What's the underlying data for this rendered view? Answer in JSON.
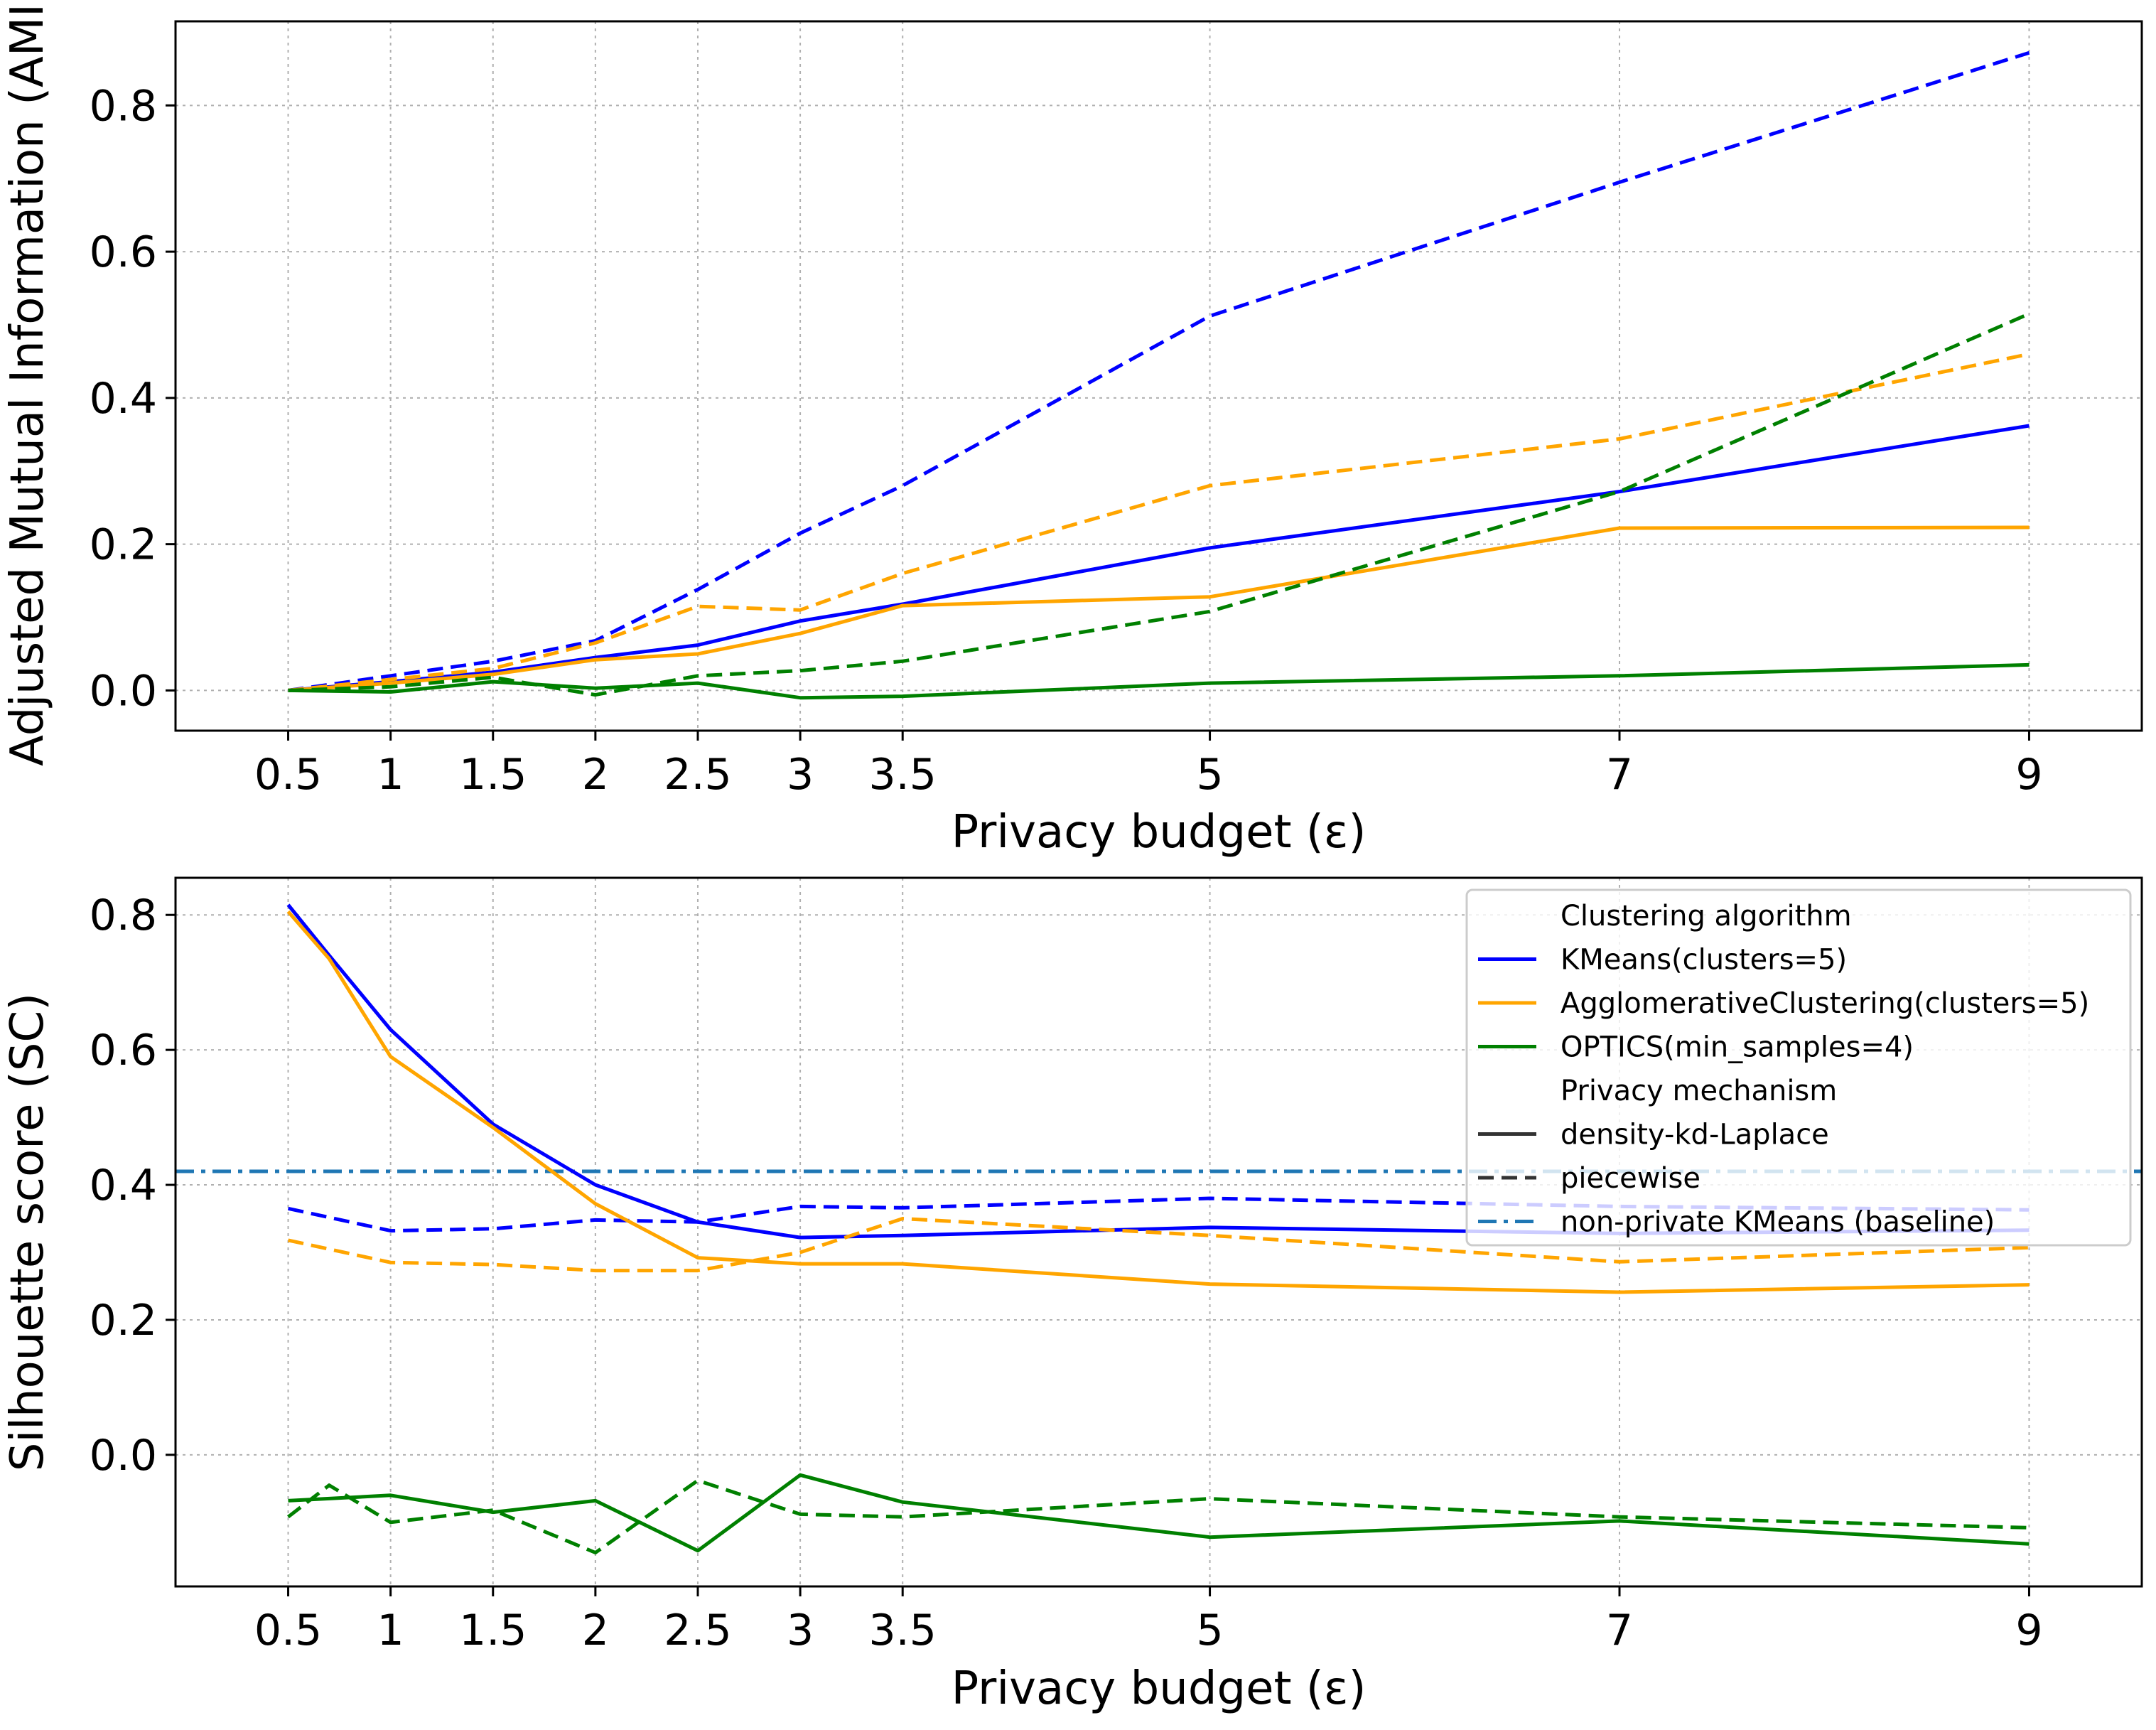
{
  "chart_data": [
    {
      "type": "line",
      "xlabel": "Privacy budget (ε)",
      "ylabel": "Adjusted Mutual Information (AMI)",
      "x": [
        0.5,
        1,
        1.5,
        2,
        2.5,
        3,
        3.5,
        5,
        7,
        9
      ],
      "xtick_labels": [
        "0.5",
        "1",
        "1.5",
        "2",
        "2.5",
        "3",
        "3.5",
        "5",
        "7",
        "9"
      ],
      "yticks": [
        0.0,
        0.2,
        0.4,
        0.6,
        0.8
      ],
      "ytick_labels": [
        "0.0",
        "0.2",
        "0.4",
        "0.6",
        "0.8"
      ],
      "ylim": [
        -0.055,
        0.915
      ],
      "xlim": [
        -0.05,
        9.55
      ],
      "grid": true,
      "series": [
        {
          "algorithm": "KMeans(clusters=5)",
          "mechanism": "density-kd-Laplace",
          "color": "#0000ff",
          "dash": "solid",
          "values": [
            0.0,
            0.012,
            0.025,
            0.045,
            0.062,
            0.095,
            0.118,
            0.195,
            0.272,
            0.362
          ]
        },
        {
          "algorithm": "KMeans(clusters=5)",
          "mechanism": "piecewise",
          "color": "#0000ff",
          "dash": "dashed",
          "values": [
            0.0,
            0.02,
            0.04,
            0.068,
            0.138,
            0.215,
            0.28,
            0.512,
            0.695,
            0.872
          ]
        },
        {
          "algorithm": "AgglomerativeClustering(clusters=5)",
          "mechanism": "density-kd-Laplace",
          "color": "#ffa500",
          "dash": "solid",
          "values": [
            0.0,
            0.01,
            0.022,
            0.042,
            0.05,
            0.078,
            0.116,
            0.128,
            0.222,
            0.223
          ]
        },
        {
          "algorithm": "AgglomerativeClustering(clusters=5)",
          "mechanism": "piecewise",
          "color": "#ffa500",
          "dash": "dashed",
          "x": [
            0.5,
            1,
            1.5,
            2,
            2.5,
            3,
            3.5,
            5,
            7,
            9
          ],
          "values": [
            0.0,
            0.015,
            0.03,
            0.065,
            0.115,
            0.11,
            0.16,
            0.28,
            0.344,
            0.46
          ]
        },
        {
          "algorithm": "OPTICS(min_samples=4)",
          "mechanism": "density-kd-Laplace",
          "color": "#008000",
          "dash": "solid",
          "values": [
            0.0,
            -0.002,
            0.012,
            0.003,
            0.01,
            -0.01,
            -0.008,
            0.01,
            0.02,
            0.035
          ]
        },
        {
          "algorithm": "OPTICS(min_samples=4)",
          "mechanism": "piecewise",
          "color": "#008000",
          "dash": "dashed",
          "values": [
            0.0,
            0.005,
            0.018,
            -0.006,
            0.02,
            0.027,
            0.04,
            0.108,
            0.272,
            0.515
          ]
        }
      ]
    },
    {
      "type": "line",
      "xlabel": "Privacy budget (ε)",
      "ylabel": "Silhouette score (SC)",
      "x": [
        0.5,
        1,
        1.5,
        2,
        2.5,
        3,
        3.5,
        5,
        7,
        9
      ],
      "xtick_labels": [
        "0.5",
        "1",
        "1.5",
        "2",
        "2.5",
        "3",
        "3.5",
        "5",
        "7",
        "9"
      ],
      "yticks": [
        0.0,
        0.2,
        0.4,
        0.6,
        0.8
      ],
      "ytick_labels": [
        "0.0",
        "0.2",
        "0.4",
        "0.6",
        "0.8"
      ],
      "ylim": [
        -0.195,
        0.855
      ],
      "xlim": [
        -0.05,
        9.55
      ],
      "grid": true,
      "baseline": {
        "label": "non-private KMeans (baseline)",
        "value": 0.42,
        "color": "#1f77b4",
        "dash": "dashdot"
      },
      "series": [
        {
          "algorithm": "KMeans(clusters=5)",
          "mechanism": "density-kd-Laplace",
          "color": "#0000ff",
          "dash": "solid",
          "x": [
            0.5,
            0.7,
            1,
            1.5,
            2,
            2.5,
            3,
            3.5,
            5,
            7,
            9
          ],
          "values": [
            0.815,
            0.74,
            0.63,
            0.49,
            0.4,
            0.345,
            0.322,
            0.325,
            0.337,
            0.328,
            0.333
          ]
        },
        {
          "algorithm": "KMeans(clusters=5)",
          "mechanism": "piecewise",
          "color": "#0000ff",
          "dash": "dashed",
          "x": [
            0.5,
            1,
            1.5,
            2,
            2.5,
            3,
            3.5,
            5,
            7,
            9
          ],
          "values": [
            0.365,
            0.332,
            0.335,
            0.348,
            0.345,
            0.368,
            0.366,
            0.38,
            0.368,
            0.363
          ]
        },
        {
          "algorithm": "AgglomerativeClustering(clusters=5)",
          "mechanism": "density-kd-Laplace",
          "color": "#ffa500",
          "dash": "solid",
          "x": [
            0.5,
            0.7,
            1,
            1.5,
            2,
            2.5,
            3,
            3.5,
            5,
            7,
            9
          ],
          "values": [
            0.805,
            0.735,
            0.59,
            0.485,
            0.372,
            0.292,
            0.283,
            0.283,
            0.253,
            0.241,
            0.252
          ]
        },
        {
          "algorithm": "AgglomerativeClustering(clusters=5)",
          "mechanism": "piecewise",
          "color": "#ffa500",
          "dash": "dashed",
          "x": [
            0.5,
            1,
            1.5,
            2,
            2.5,
            3,
            3.5,
            5,
            7,
            9
          ],
          "values": [
            0.318,
            0.285,
            0.282,
            0.273,
            0.273,
            0.3,
            0.35,
            0.325,
            0.286,
            0.307
          ]
        },
        {
          "algorithm": "OPTICS(min_samples=4)",
          "mechanism": "density-kd-Laplace",
          "color": "#008000",
          "dash": "solid",
          "x": [
            0.5,
            1,
            1.5,
            2,
            2.5,
            3,
            3.5,
            5,
            7,
            9
          ],
          "values": [
            -0.068,
            -0.06,
            -0.085,
            -0.068,
            -0.142,
            -0.03,
            -0.07,
            -0.122,
            -0.098,
            -0.132
          ]
        },
        {
          "algorithm": "OPTICS(min_samples=4)",
          "mechanism": "piecewise",
          "color": "#008000",
          "dash": "dashed",
          "x": [
            0.5,
            0.7,
            1,
            1.5,
            2,
            2.5,
            3,
            3.5,
            5,
            7,
            9
          ],
          "values": [
            -0.092,
            -0.045,
            -0.1,
            -0.082,
            -0.145,
            -0.038,
            -0.088,
            -0.092,
            -0.065,
            -0.092,
            -0.108
          ]
        }
      ],
      "legend": {
        "placement": "upper right",
        "entries": [
          {
            "text": "Clustering algorithm",
            "kind": "header"
          },
          {
            "text": "KMeans(clusters=5)",
            "kind": "line",
            "color": "#0000ff",
            "dash": "solid"
          },
          {
            "text": "AgglomerativeClustering(clusters=5)",
            "kind": "line",
            "color": "#ffa500",
            "dash": "solid"
          },
          {
            "text": "OPTICS(min_samples=4)",
            "kind": "line",
            "color": "#008000",
            "dash": "solid"
          },
          {
            "text": "Privacy mechanism",
            "kind": "header"
          },
          {
            "text": "density-kd-Laplace",
            "kind": "line",
            "color": "#333333",
            "dash": "solid"
          },
          {
            "text": "piecewise",
            "kind": "line",
            "color": "#333333",
            "dash": "dashed"
          },
          {
            "text": "non-private KMeans (baseline)",
            "kind": "line",
            "color": "#1f77b4",
            "dash": "dashdot"
          }
        ]
      }
    }
  ]
}
